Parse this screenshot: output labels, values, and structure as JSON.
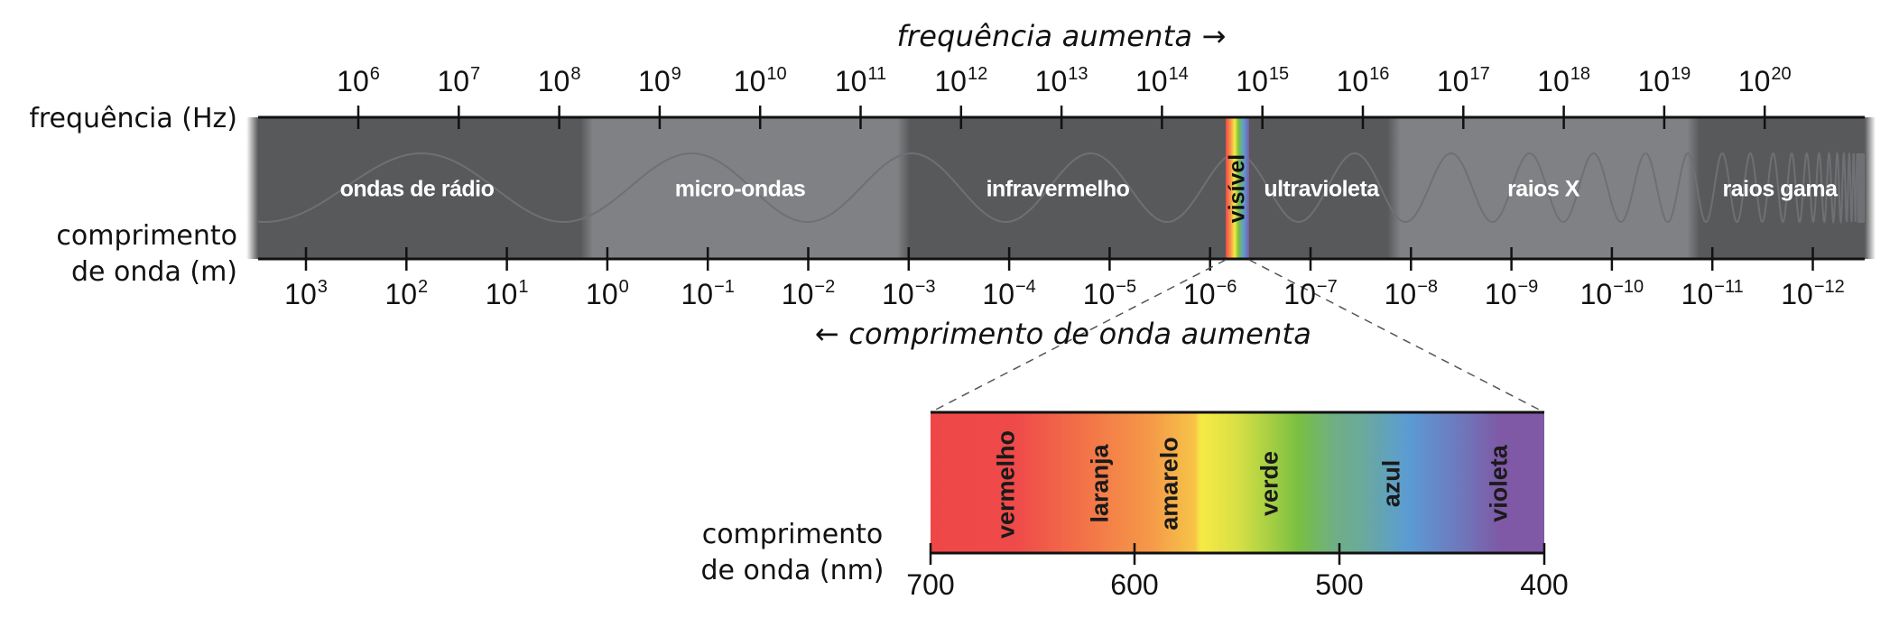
{
  "diagram": {
    "title_frequency": "frequência aumenta →",
    "title_wavelength": "← comprimento de onda aumenta",
    "label_frequency_axis": "frequência (Hz)",
    "label_wavelength_axis_line1": "comprimento",
    "label_wavelength_axis_line2": "de onda (m)",
    "frequency_ticks": [
      {
        "base": "10",
        "exp": "6"
      },
      {
        "base": "10",
        "exp": "7"
      },
      {
        "base": "10",
        "exp": "8"
      },
      {
        "base": "10",
        "exp": "9"
      },
      {
        "base": "10",
        "exp": "10"
      },
      {
        "base": "10",
        "exp": "11"
      },
      {
        "base": "10",
        "exp": "12"
      },
      {
        "base": "10",
        "exp": "13"
      },
      {
        "base": "10",
        "exp": "14"
      },
      {
        "base": "10",
        "exp": "15"
      },
      {
        "base": "10",
        "exp": "16"
      },
      {
        "base": "10",
        "exp": "17"
      },
      {
        "base": "10",
        "exp": "18"
      },
      {
        "base": "10",
        "exp": "19"
      },
      {
        "base": "10",
        "exp": "20"
      }
    ],
    "wavelength_ticks": [
      {
        "base": "10",
        "exp": "3"
      },
      {
        "base": "10",
        "exp": "2"
      },
      {
        "base": "10",
        "exp": "1"
      },
      {
        "base": "10",
        "exp": "0"
      },
      {
        "base": "10",
        "exp": "−1"
      },
      {
        "base": "10",
        "exp": "−2"
      },
      {
        "base": "10",
        "exp": "−3"
      },
      {
        "base": "10",
        "exp": "−4"
      },
      {
        "base": "10",
        "exp": "−5"
      },
      {
        "base": "10",
        "exp": "−6"
      },
      {
        "base": "10",
        "exp": "−7"
      },
      {
        "base": "10",
        "exp": "−8"
      },
      {
        "base": "10",
        "exp": "−9"
      },
      {
        "base": "10",
        "exp": "−10"
      },
      {
        "base": "10",
        "exp": "−11"
      },
      {
        "base": "10",
        "exp": "−12"
      }
    ],
    "regions": [
      {
        "label": "ondas de rádio",
        "shade": "dark"
      },
      {
        "label": "micro-ondas",
        "shade": "light"
      },
      {
        "label": "infravermelho",
        "shade": "dark"
      },
      {
        "label": "visível",
        "shade": "rainbow"
      },
      {
        "label": "ultravioleta",
        "shade": "dark"
      },
      {
        "label": "raios X",
        "shade": "light"
      },
      {
        "label": "raios gama",
        "shade": "dark"
      }
    ],
    "visible_spectrum": {
      "axis_label_line1": "comprimento",
      "axis_label_line2": "de onda (nm)",
      "ticks": [
        "700",
        "600",
        "500",
        "400"
      ],
      "colors": [
        {
          "label": "vermelho"
        },
        {
          "label": "laranja"
        },
        {
          "label": "amarelo"
        },
        {
          "label": "verde"
        },
        {
          "label": "azul"
        },
        {
          "label": "violeta"
        }
      ]
    },
    "palette": {
      "dark_band": "#58595b",
      "light_band": "#808184",
      "wave": "#6f7073",
      "red": "#ef4747",
      "orange": "#f59a48",
      "yellow": "#f7ea45",
      "green": "#79bf43",
      "teal": "#6aab99",
      "blue": "#5b9bd5",
      "violet": "#7f58a6"
    }
  }
}
